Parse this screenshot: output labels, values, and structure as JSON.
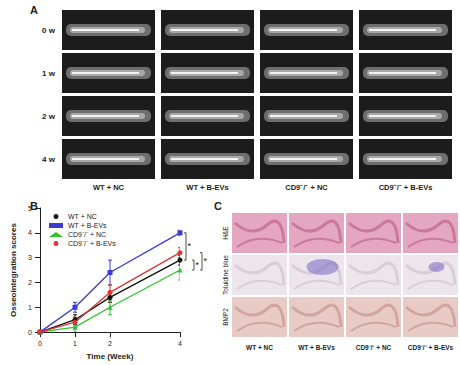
{
  "panel_labels": [
    "A",
    "B",
    "C"
  ],
  "panel_a": {
    "rows": [
      "0 w",
      "1 w",
      "2 w",
      "4 w"
    ],
    "columns": [
      "WT + NC",
      "WT + B-EVs",
      "CD9⁻/⁻ + NC",
      "CD9⁻/⁻ + B-EVs"
    ]
  },
  "panel_c": {
    "rows": [
      "H&E",
      "Toluidine blue",
      "BMP2"
    ],
    "columns": [
      "WT + NC",
      "WT + B-EVs",
      "CD9⁻/⁻ + NC",
      "CD9⁻/⁻ + B-EVs"
    ]
  },
  "chart_data": {
    "type": "line",
    "x_label": "Time (Week)",
    "y_label": "Osseointegration scores",
    "x": [
      0,
      1,
      2,
      4
    ],
    "xlim": [
      0,
      4
    ],
    "xticks": [
      0,
      1,
      2,
      4
    ],
    "ylim": [
      0,
      5
    ],
    "yticks": [
      0,
      1,
      2,
      3,
      4,
      5
    ],
    "grid": false,
    "legend": "upper left",
    "series": [
      {
        "name": "WT + NC",
        "color": "#111111",
        "marker": "circle",
        "values": [
          0,
          0.5,
          1.4,
          2.9
        ],
        "errors": [
          0,
          0.2,
          0.2,
          0.2
        ]
      },
      {
        "name": "WT + B-EVs",
        "color": "#3a3ad6",
        "marker": "square",
        "values": [
          0,
          1.0,
          2.4,
          4.0
        ],
        "errors": [
          0,
          0.2,
          0.5,
          0.1
        ]
      },
      {
        "name": "CD9⁻/⁻ + NC",
        "color": "#2fc42f",
        "marker": "triangle",
        "values": [
          0,
          0.2,
          1.0,
          2.5
        ],
        "errors": [
          0,
          0.2,
          0.3,
          0.4
        ]
      },
      {
        "name": "CD9⁻/⁻ + B-EVs",
        "color": "#e03434",
        "marker": "circle",
        "values": [
          0,
          0.4,
          1.6,
          3.2
        ],
        "errors": [
          0,
          0.2,
          0.3,
          0.2
        ]
      }
    ],
    "annotations": [
      {
        "text": "*",
        "between": [
          "WT + B-EVs",
          "WT + NC"
        ]
      },
      {
        "text": "*",
        "between": [
          "WT + NC",
          "CD9⁻/⁻ + NC"
        ]
      },
      {
        "text": "*",
        "between": [
          "CD9⁻/⁻ + B-EVs",
          "CD9⁻/⁻ + NC"
        ]
      }
    ]
  }
}
